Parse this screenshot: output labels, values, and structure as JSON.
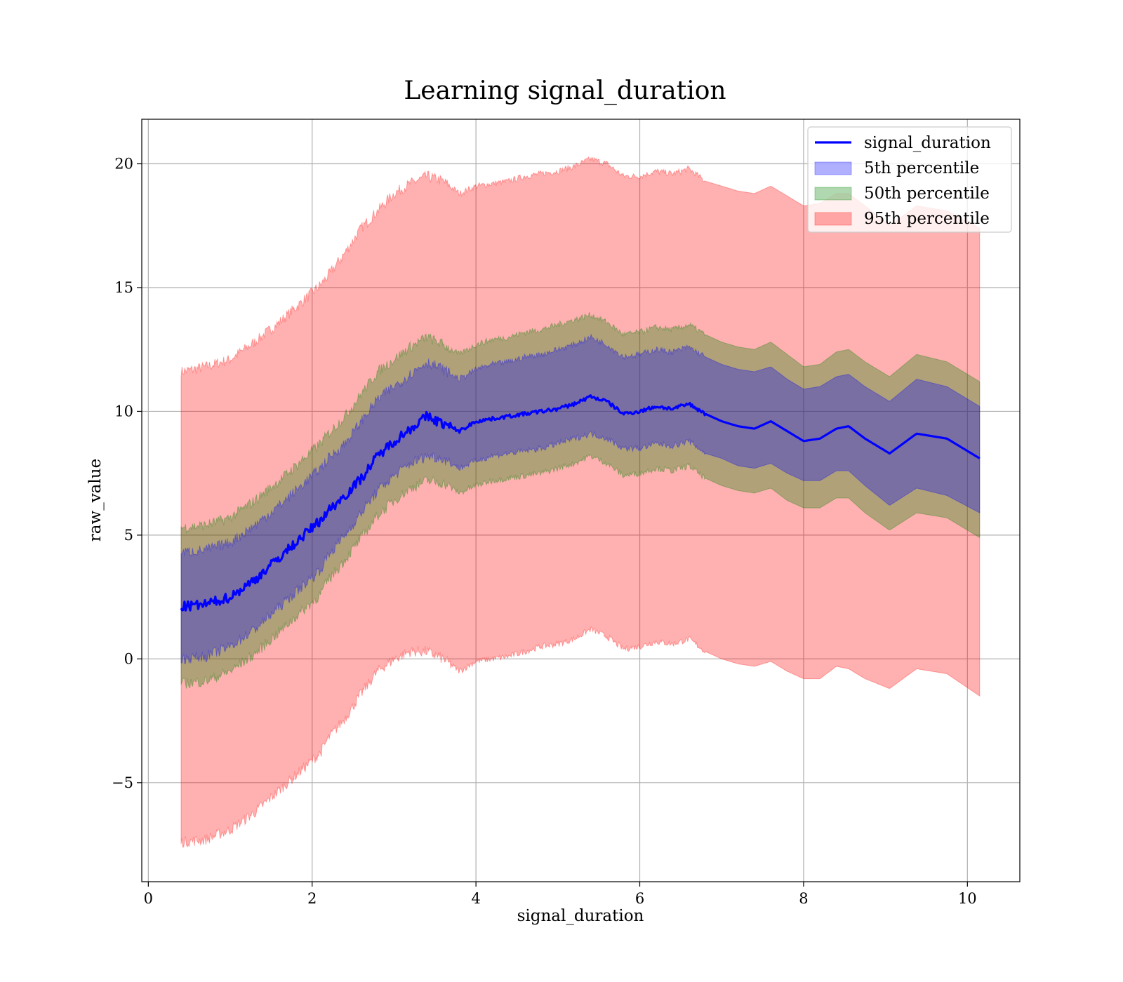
{
  "chart_data": {
    "type": "area",
    "title": "Learning signal_duration",
    "xlabel": "signal_duration",
    "ylabel": "raw_value",
    "xlim": [
      -0.08,
      10.64
    ],
    "ylim": [
      -9.0,
      21.8
    ],
    "x_ticks": [
      0,
      2,
      4,
      6,
      8,
      10
    ],
    "x_tick_labels": [
      "0",
      "2",
      "4",
      "6",
      "8",
      "10"
    ],
    "y_ticks": [
      -5,
      0,
      5,
      10,
      15,
      20
    ],
    "y_tick_labels": [
      "−5",
      "0",
      "5",
      "10",
      "15",
      "20"
    ],
    "grid": true,
    "legend_position": "top-right",
    "x": [
      0.4,
      0.7,
      1.0,
      1.3,
      1.6,
      1.9,
      2.1,
      2.2,
      2.4,
      2.6,
      2.8,
      3.0,
      3.2,
      3.4,
      3.6,
      3.8,
      4.0,
      4.2,
      4.4,
      4.6,
      4.8,
      5.0,
      5.2,
      5.4,
      5.6,
      5.8,
      6.0,
      6.2,
      6.4,
      6.6,
      6.8,
      7.0,
      7.2,
      7.4,
      7.6,
      7.8,
      8.0,
      8.2,
      8.4,
      8.55,
      8.75,
      9.05,
      9.38,
      9.75,
      10.15
    ],
    "series": [
      {
        "name": "signal_duration",
        "kind": "line",
        "color": "#0000ff",
        "values": [
          2.1,
          2.2,
          2.5,
          3.2,
          4.1,
          5.0,
          5.6,
          6.0,
          6.6,
          7.3,
          8.2,
          8.8,
          9.3,
          9.8,
          9.5,
          9.2,
          9.6,
          9.7,
          9.8,
          9.9,
          10.0,
          10.1,
          10.3,
          10.6,
          10.4,
          9.9,
          10.0,
          10.2,
          10.1,
          10.3,
          9.9,
          9.6,
          9.4,
          9.3,
          9.6,
          9.2,
          8.8,
          8.9,
          9.3,
          9.4,
          8.9,
          8.3,
          9.1,
          8.9,
          8.1
        ]
      },
      {
        "name": "5th percentile",
        "kind": "band",
        "color": "#0000ff",
        "lower": [
          0.0,
          0.1,
          0.5,
          1.2,
          2.1,
          3.0,
          3.6,
          4.2,
          5.0,
          5.9,
          6.8,
          7.4,
          7.9,
          8.2,
          8.1,
          7.7,
          8.0,
          8.2,
          8.3,
          8.4,
          8.5,
          8.7,
          8.9,
          9.1,
          8.9,
          8.5,
          8.5,
          8.7,
          8.6,
          8.8,
          8.3,
          8.1,
          7.8,
          7.7,
          7.9,
          7.5,
          7.2,
          7.2,
          7.6,
          7.6,
          7.0,
          6.2,
          6.9,
          6.6,
          5.9
        ],
        "upper": [
          4.3,
          4.4,
          4.7,
          5.4,
          6.2,
          7.1,
          7.7,
          8.1,
          8.7,
          9.6,
          10.5,
          11.0,
          11.5,
          12.0,
          11.7,
          11.3,
          11.7,
          11.9,
          12.0,
          12.2,
          12.3,
          12.5,
          12.7,
          13.0,
          12.7,
          12.2,
          12.3,
          12.5,
          12.4,
          12.6,
          12.2,
          11.9,
          11.7,
          11.6,
          11.8,
          11.3,
          10.9,
          11.0,
          11.4,
          11.5,
          11.0,
          10.4,
          11.3,
          11.0,
          10.2
        ]
      },
      {
        "name": "50th percentile",
        "kind": "band",
        "color": "#008000",
        "lower": [
          -1.0,
          -0.9,
          -0.5,
          0.2,
          1.1,
          2.0,
          2.6,
          3.2,
          4.0,
          4.9,
          5.8,
          6.4,
          6.9,
          7.2,
          7.1,
          6.7,
          7.0,
          7.2,
          7.3,
          7.4,
          7.5,
          7.7,
          7.9,
          8.2,
          7.9,
          7.4,
          7.5,
          7.7,
          7.6,
          7.8,
          7.3,
          7.0,
          6.8,
          6.7,
          6.9,
          6.4,
          6.1,
          6.1,
          6.5,
          6.5,
          5.9,
          5.2,
          5.9,
          5.7,
          4.9
        ],
        "upper": [
          5.3,
          5.4,
          5.7,
          6.4,
          7.2,
          8.1,
          8.7,
          9.1,
          9.8,
          10.7,
          11.6,
          12.1,
          12.6,
          13.0,
          12.7,
          12.3,
          12.7,
          12.9,
          13.0,
          13.2,
          13.3,
          13.5,
          13.7,
          13.9,
          13.6,
          13.1,
          13.2,
          13.4,
          13.3,
          13.5,
          13.1,
          12.8,
          12.6,
          12.5,
          12.8,
          12.3,
          11.8,
          11.9,
          12.4,
          12.5,
          12.0,
          11.4,
          12.3,
          12.0,
          11.2
        ]
      },
      {
        "name": "95th percentile",
        "kind": "band",
        "color": "#ff0000",
        "lower": [
          -7.4,
          -7.3,
          -6.9,
          -6.2,
          -5.3,
          -4.4,
          -3.8,
          -3.2,
          -2.4,
          -1.4,
          -0.5,
          0.0,
          0.3,
          0.3,
          0.0,
          -0.5,
          -0.1,
          0.0,
          0.1,
          0.3,
          0.5,
          0.6,
          0.8,
          1.2,
          0.9,
          0.4,
          0.5,
          0.7,
          0.6,
          0.8,
          0.3,
          0.0,
          -0.2,
          -0.3,
          -0.1,
          -0.5,
          -0.8,
          -0.8,
          -0.3,
          -0.4,
          -0.8,
          -1.2,
          -0.4,
          -0.6,
          -1.5
        ],
        "upper": [
          11.6,
          11.8,
          12.1,
          12.8,
          13.6,
          14.5,
          15.1,
          15.5,
          16.4,
          17.4,
          18.1,
          18.8,
          19.2,
          19.5,
          19.3,
          18.8,
          19.1,
          19.2,
          19.3,
          19.5,
          19.6,
          19.7,
          19.9,
          20.2,
          20.0,
          19.5,
          19.5,
          19.7,
          19.6,
          19.8,
          19.3,
          19.1,
          18.9,
          18.8,
          19.1,
          18.7,
          18.3,
          18.4,
          18.8,
          18.8,
          18.3,
          17.5,
          18.3,
          18.1,
          17.4
        ]
      }
    ]
  }
}
